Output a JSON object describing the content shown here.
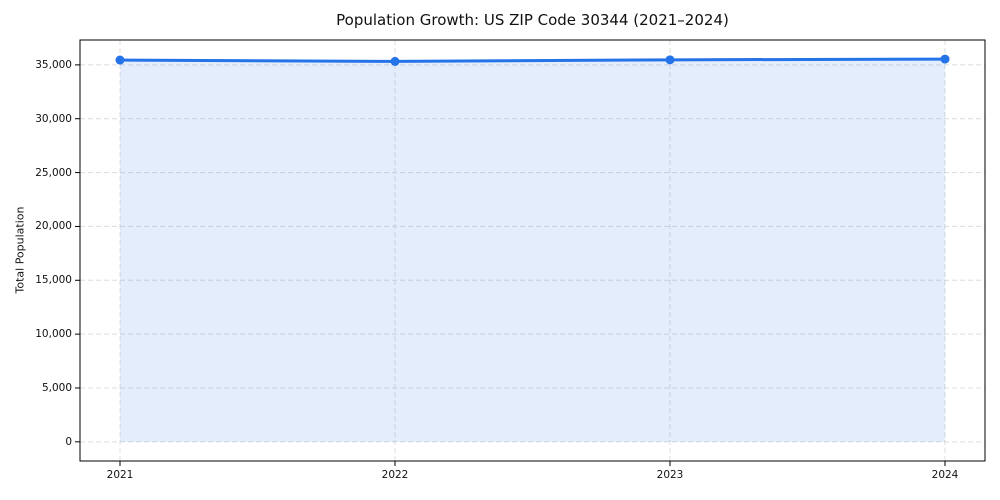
{
  "chart_data": {
    "type": "area",
    "title": "Population Growth: US ZIP Code 30344 (2021–2024)",
    "xlabel": "",
    "ylabel": "Total Population",
    "categories": [
      "2021",
      "2022",
      "2023",
      "2024"
    ],
    "series": [
      {
        "name": "Total Population",
        "values": [
          35450,
          35320,
          35470,
          35540
        ]
      }
    ],
    "ylim": [
      -1780,
      37310
    ],
    "y_ticks": [
      {
        "value": 0,
        "label": "0"
      },
      {
        "value": 5000,
        "label": "5,000"
      },
      {
        "value": 10000,
        "label": "10,000"
      },
      {
        "value": 15000,
        "label": "15,000"
      },
      {
        "value": 20000,
        "label": "20,000"
      },
      {
        "value": 25000,
        "label": "25,000"
      },
      {
        "value": 30000,
        "label": "30,000"
      },
      {
        "value": 35000,
        "label": "35,000"
      }
    ],
    "grid": true,
    "grid_style": "dashed",
    "legend_position": "none",
    "colors": {
      "line": "#2573e8",
      "marker": "#2573e8",
      "fill": "rgba(37, 115, 232, 0.13)",
      "grid": "#dcdcdc",
      "spine": "#000000",
      "text": "#111111",
      "background": "#ffffff"
    }
  }
}
